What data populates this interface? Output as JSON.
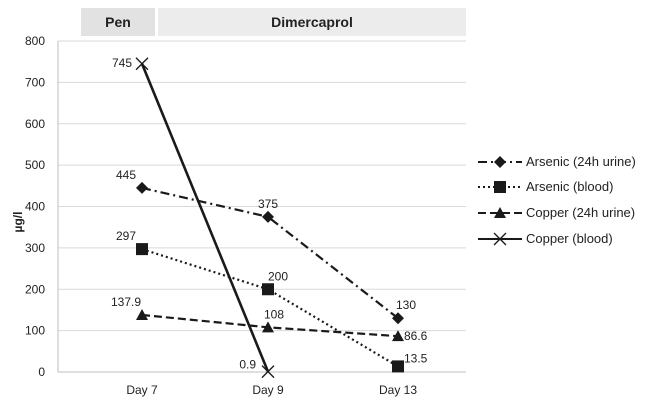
{
  "chart_data": {
    "type": "line",
    "categories": [
      "Day 7",
      "Day 9",
      "Day 13"
    ],
    "ylabel": "µg/l",
    "ylim": [
      0,
      800
    ],
    "yticks": [
      0,
      100,
      200,
      300,
      400,
      500,
      600,
      700,
      800
    ],
    "grid": "horizontal",
    "legend_position": "right",
    "treatment_bands": [
      {
        "label": "Pen"
      },
      {
        "label": "Dimercaprol"
      }
    ],
    "series": [
      {
        "name": "Arsenic (24h urine)",
        "values": [
          445,
          375,
          130
        ],
        "labels": [
          "445",
          "375",
          "130"
        ],
        "marker": "diamond",
        "line_style": "dashdot"
      },
      {
        "name": "Arsenic (blood)",
        "values": [
          297,
          200,
          13.5
        ],
        "labels": [
          "297",
          "200",
          "13.5"
        ],
        "marker": "square",
        "line_style": "dotted"
      },
      {
        "name": "Copper (24h urine)",
        "values": [
          137.9,
          108,
          86.6
        ],
        "labels": [
          "137.9",
          "108",
          "86.6"
        ],
        "marker": "triangle",
        "line_style": "dashed"
      },
      {
        "name": "Copper (blood)",
        "values": [
          745,
          0.9,
          null
        ],
        "labels": [
          "745",
          "0.9",
          ""
        ],
        "marker": "x",
        "line_style": "solid"
      }
    ]
  }
}
